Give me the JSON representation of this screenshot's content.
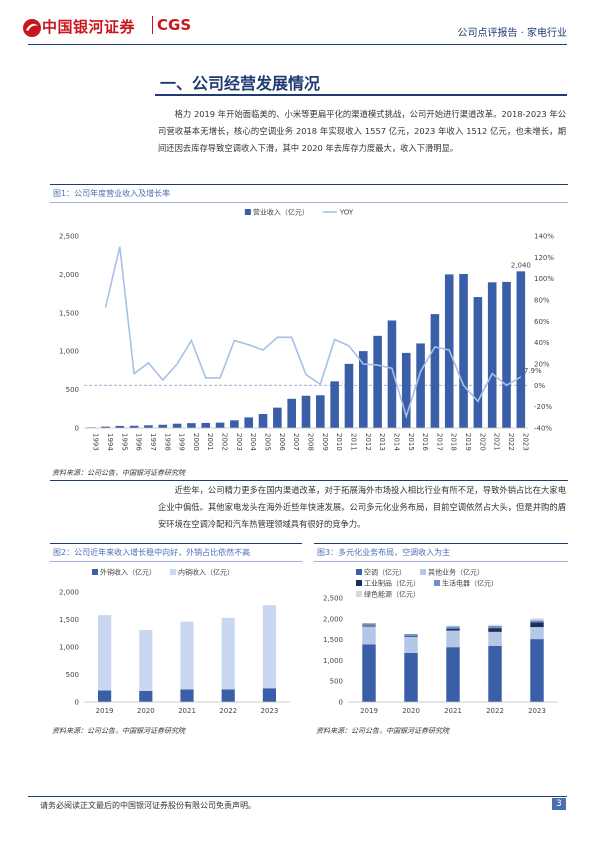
{
  "header": {
    "logo": "中国银河证券",
    "logo_en": "CGS",
    "report_type": "公司点评报告 · 家电行业"
  },
  "section_title": "一、公司经营发展情况",
  "paragraphs": [
    "格力 2019 年开始面临美的、小米等更扁平化的渠道模式挑战，公司开始进行渠道改革。2018-2023 年公司营收基本无增长，核心的空调业务 2018 年实现收入 1557 亿元，2023 年收入 1512 亿元，也未增长，期间还因去库存导致空调收入下滑，其中 2020 年去库存力度最大，收入下滑明显。",
    "近些年，公司精力更多在国内渠道改革，对于拓展海外市场投入相比行业有所不足，导致外销占比在大家电企业中偏低。其他家电龙头在海外近些年快速发展。公司多元化业务布局，目前空调依然占大头，但是并购的盾安环境在空调冷配和汽车热管理领域具有很好的竞争力。"
  ],
  "chart_data": [
    {
      "type": "bar",
      "title": "图1：公司年度营业收入及增长率",
      "categories": [
        "1993",
        "1994",
        "1995",
        "1996",
        "1997",
        "1998",
        "1999",
        "2000",
        "2001",
        "2002",
        "2003",
        "2004",
        "2005",
        "2006",
        "2007",
        "2008",
        "2009",
        "2010",
        "2011",
        "2012",
        "2013",
        "2014",
        "2015",
        "2016",
        "2017",
        "2018",
        "2019",
        "2020",
        "2021",
        "2022",
        "2023"
      ],
      "series": [
        {
          "name": "营业收入（亿元）",
          "color": "#3a5fa8",
          "values": [
            8,
            18,
            27,
            29,
            35,
            42,
            56,
            63,
            66,
            70,
            100,
            138,
            182,
            265,
            380,
            420,
            426,
            608,
            835,
            1001,
            1200,
            1400,
            978,
            1101,
            1483,
            2000,
            2005,
            1705,
            1897,
            1902,
            2040
          ],
          "value_labels": [
            null,
            null,
            null,
            null,
            null,
            null,
            null,
            null,
            null,
            null,
            null,
            null,
            null,
            null,
            null,
            null,
            null,
            null,
            null,
            null,
            null,
            null,
            null,
            null,
            null,
            null,
            null,
            null,
            null,
            null,
            "2,040"
          ]
        },
        {
          "name": "YOY",
          "type": "line",
          "axis": "y2",
          "color": "#a9c0e6",
          "values": [
            null,
            73,
            130,
            11,
            21,
            5,
            20,
            42,
            7,
            7,
            42,
            38,
            33,
            45,
            45,
            10,
            1,
            43,
            37,
            20,
            19,
            16,
            -29,
            13,
            36,
            33,
            0,
            -15,
            11,
            0,
            7.9
          ],
          "value_labels": [
            null,
            null,
            null,
            null,
            null,
            null,
            null,
            null,
            null,
            null,
            null,
            null,
            null,
            null,
            null,
            null,
            null,
            null,
            null,
            null,
            null,
            null,
            null,
            null,
            null,
            null,
            null,
            null,
            null,
            null,
            "7.9%"
          ]
        }
      ],
      "ylim": [
        0,
        2500
      ],
      "yticks": [
        0,
        500,
        {
          "value": 1000,
          "label": "1,000"
        },
        {
          "value": 1500,
          "label": "1,500"
        },
        {
          "value": 2000,
          "label": "2,000"
        },
        {
          "value": 2500,
          "label": "2,500"
        }
      ],
      "y2lim": [
        -40,
        140
      ],
      "y2ticks": [
        {
          "value": -40,
          "label": "-40%"
        },
        {
          "value": -20,
          "label": "-20%"
        },
        {
          "value": 0,
          "label": "0%"
        },
        {
          "value": 20,
          "label": "20%"
        },
        {
          "value": 40,
          "label": "40%"
        },
        {
          "value": 60,
          "label": "60%"
        },
        {
          "value": 80,
          "label": "80%"
        },
        {
          "value": 100,
          "label": "100%"
        },
        {
          "value": 120,
          "label": "120%"
        },
        {
          "value": 140,
          "label": "140%"
        }
      ],
      "grid": false,
      "legend": "top",
      "stacked": false
    },
    {
      "type": "bar",
      "title": "图2：公司近年来收入增长稳中向好，外销占比依然不高",
      "categories": [
        "2019",
        "2020",
        "2021",
        "2022",
        "2023"
      ],
      "series": [
        {
          "name": "外销收入（亿元）",
          "color": "#3a5fa8",
          "values": [
            210,
            200,
            230,
            230,
            250
          ]
        },
        {
          "name": "内销收入（亿元）",
          "color": "#c9d8f0",
          "values": [
            1370,
            1110,
            1230,
            1300,
            1510
          ]
        }
      ],
      "ylim": [
        0,
        2000
      ],
      "yticks": [
        0,
        500,
        {
          "value": 1000,
          "label": "1,000"
        },
        {
          "value": 1500,
          "label": "1,500"
        },
        {
          "value": 2000,
          "label": "2,000"
        }
      ],
      "grid": false,
      "legend": "top",
      "stacked": true
    },
    {
      "type": "bar",
      "title": "图3：多元化业务布局，空调收入为主",
      "categories": [
        "2019",
        "2020",
        "2021",
        "2022",
        "2023"
      ],
      "series": [
        {
          "name": "空调（亿元）",
          "color": "#3a5fa8",
          "values": [
            1386,
            1179,
            1318,
            1346,
            1512
          ]
        },
        {
          "name": "其他业务（亿元）",
          "color": "#b4c7e7",
          "values": [
            430,
            390,
            400,
            340,
            290
          ]
        },
        {
          "name": "工业制品（亿元）",
          "color": "#1f2d5c",
          "values": [
            20,
            20,
            45,
            90,
            110
          ]
        },
        {
          "name": "生活电器（亿元）",
          "color": "#6f8fca",
          "values": [
            56,
            45,
            51,
            50,
            50
          ]
        },
        {
          "name": "绿色能源（亿元）",
          "color": "#d9d9d9",
          "values": [
            0,
            0,
            20,
            30,
            50
          ]
        }
      ],
      "ylim": [
        0,
        2500
      ],
      "yticks": [
        0,
        500,
        {
          "value": 1000,
          "label": "1,000"
        },
        {
          "value": 1500,
          "label": "1,500"
        },
        {
          "value": 2000,
          "label": "2,000"
        },
        {
          "value": 2500,
          "label": "2,500"
        }
      ],
      "grid": false,
      "legend": "top",
      "stacked": true
    }
  ],
  "sources": [
    "资料来源：公司公告，中国银河证券研究院",
    "资料来源：公司公告，中国银河证券研究院",
    "资料来源：公司公告，中国银河证券研究院"
  ],
  "footer": {
    "disclaimer": "请务必阅读正文最后的中国银河证券股份有限公司免责声明。",
    "page": 3
  }
}
